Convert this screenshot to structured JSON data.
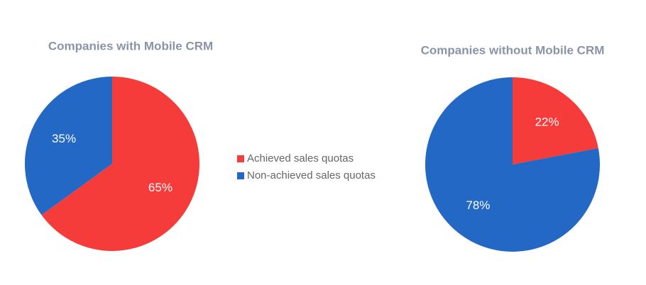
{
  "chart_data": [
    {
      "type": "pie",
      "title": "Companies with Mobile CRM",
      "categories": [
        "Achieved sales quotas",
        "Non-achieved sales quotas"
      ],
      "values": [
        65,
        35
      ],
      "value_labels": [
        "65%",
        "35%"
      ],
      "colors": [
        "#f63c3a",
        "#2268c4"
      ]
    },
    {
      "type": "pie",
      "title": "Companies without Mobile CRM",
      "categories": [
        "Achieved sales quotas",
        "Non-achieved sales quotas"
      ],
      "values": [
        22,
        78
      ],
      "value_labels": [
        "22%",
        "78%"
      ],
      "colors": [
        "#f63c3a",
        "#2268c4"
      ]
    }
  ]
}
